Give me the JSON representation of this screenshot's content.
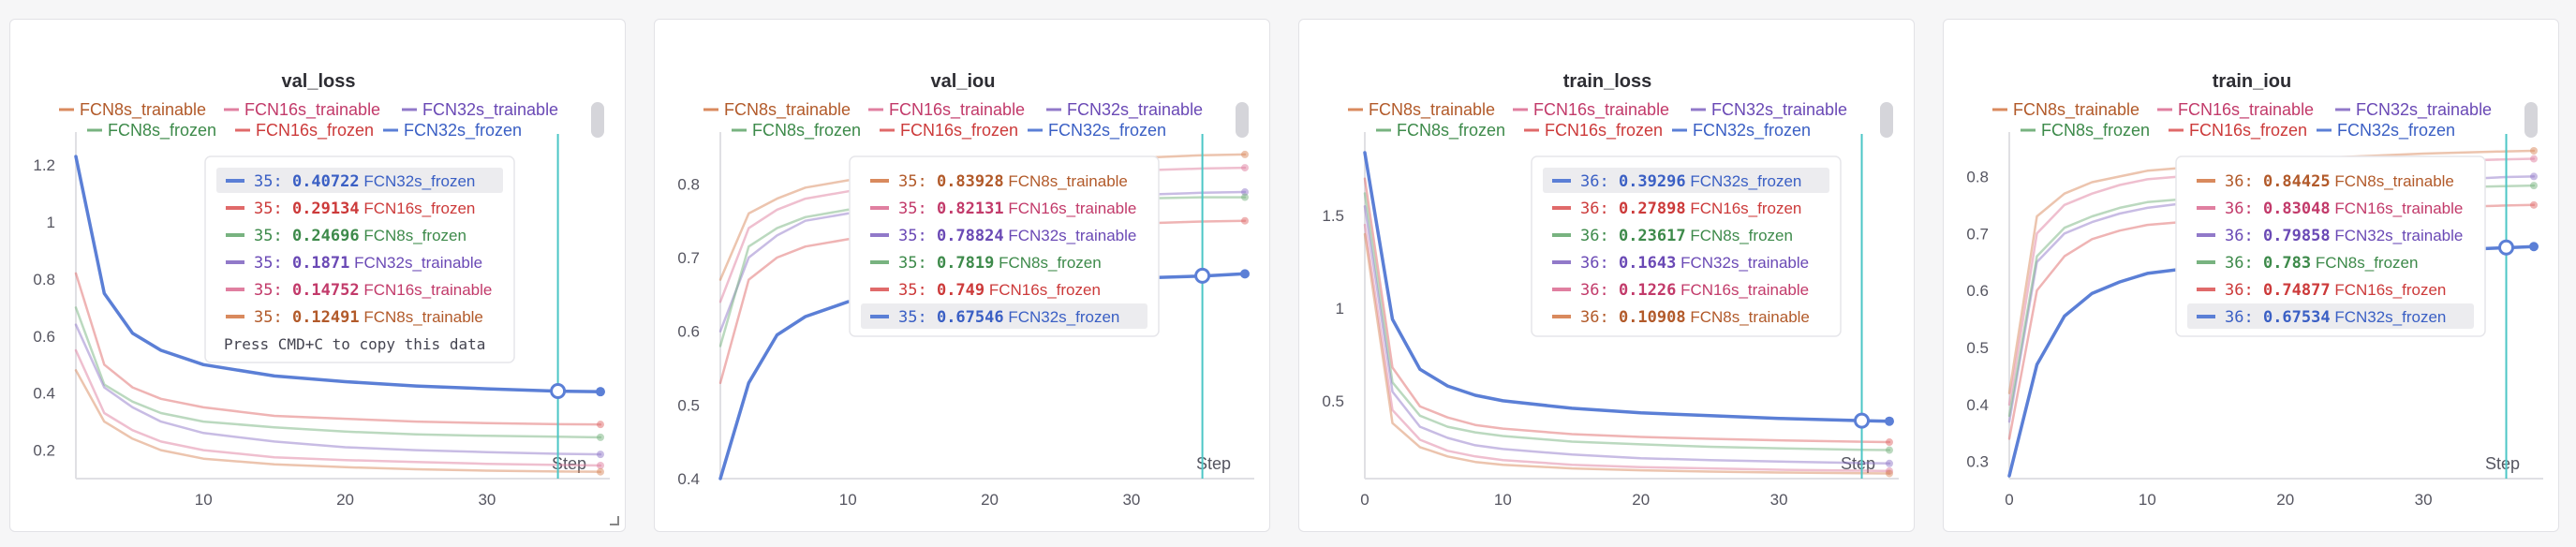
{
  "colors": {
    "FCN8s_trainable": "#d98a5e",
    "FCN16s_trainable": "#e07fa0",
    "FCN32s_trainable": "#9179c9",
    "FCN8s_frozen": "#78b380",
    "FCN16s_frozen": "#e06a6a",
    "FCN32s_frozen": "#5b7fd6",
    "cursor": "#4cc6c6",
    "FCN8s_trainable_text": "#b25a2a",
    "FCN16s_trainable_text": "#c23a6a",
    "FCN32s_trainable_text": "#6a49b5",
    "FCN8s_frozen_text": "#3d8a4a",
    "FCN16s_frozen_text": "#cc3a3a",
    "FCN32s_frozen_text": "#3a5fc4"
  },
  "legend": [
    "FCN8s_trainable",
    "FCN16s_trainable",
    "FCN32s_trainable",
    "FCN8s_frozen",
    "FCN16s_frozen",
    "FCN32s_frozen"
  ],
  "step_label": "Step",
  "copy_hint": "Press CMD+C to copy this data",
  "chart_data": [
    {
      "type": "line",
      "title": "val_loss",
      "xlim": [
        1,
        38
      ],
      "ylim": [
        0.1,
        1.25
      ],
      "xticks": [
        10,
        20,
        30
      ],
      "yticks": [
        0.2,
        0.4,
        0.6,
        0.8,
        1,
        1.2
      ],
      "grid": false,
      "cursor_step": 35,
      "tooltip": {
        "step": "35",
        "rows": [
          {
            "series": "FCN32s_frozen",
            "value": "0.40722",
            "highlight": true
          },
          {
            "series": "FCN16s_frozen",
            "value": "0.29134"
          },
          {
            "series": "FCN8s_frozen",
            "value": "0.24696"
          },
          {
            "series": "FCN32s_trainable",
            "value": "0.1871"
          },
          {
            "series": "FCN16s_trainable",
            "value": "0.14752"
          },
          {
            "series": "FCN8s_trainable",
            "value": "0.12491"
          }
        ],
        "show_hint": true
      },
      "series": [
        {
          "name": "FCN32s_frozen",
          "x": [
            1,
            3,
            5,
            7,
            10,
            15,
            20,
            25,
            30,
            35,
            38
          ],
          "y": [
            1.23,
            0.75,
            0.61,
            0.55,
            0.5,
            0.46,
            0.44,
            0.425,
            0.415,
            0.407,
            0.405
          ]
        },
        {
          "name": "FCN16s_frozen",
          "x": [
            1,
            3,
            5,
            7,
            10,
            15,
            20,
            25,
            30,
            35,
            38
          ],
          "y": [
            0.82,
            0.5,
            0.42,
            0.38,
            0.35,
            0.32,
            0.31,
            0.3,
            0.295,
            0.291,
            0.29
          ]
        },
        {
          "name": "FCN8s_frozen",
          "x": [
            1,
            3,
            5,
            7,
            10,
            15,
            20,
            25,
            30,
            35,
            38
          ],
          "y": [
            0.7,
            0.43,
            0.37,
            0.33,
            0.3,
            0.28,
            0.265,
            0.255,
            0.25,
            0.247,
            0.245
          ]
        },
        {
          "name": "FCN32s_trainable",
          "x": [
            1,
            3,
            5,
            7,
            10,
            15,
            20,
            25,
            30,
            35,
            38
          ],
          "y": [
            0.64,
            0.42,
            0.35,
            0.3,
            0.26,
            0.23,
            0.21,
            0.2,
            0.193,
            0.187,
            0.185
          ]
        },
        {
          "name": "FCN16s_trainable",
          "x": [
            1,
            3,
            5,
            7,
            10,
            15,
            20,
            25,
            30,
            35,
            38
          ],
          "y": [
            0.55,
            0.33,
            0.27,
            0.23,
            0.2,
            0.175,
            0.165,
            0.158,
            0.152,
            0.148,
            0.146
          ]
        },
        {
          "name": "FCN8s_trainable",
          "x": [
            1,
            3,
            5,
            7,
            10,
            15,
            20,
            25,
            30,
            35,
            38
          ],
          "y": [
            0.48,
            0.3,
            0.24,
            0.2,
            0.17,
            0.15,
            0.14,
            0.133,
            0.128,
            0.125,
            0.124
          ]
        }
      ]
    },
    {
      "type": "line",
      "title": "val_iou",
      "xlim": [
        1,
        38
      ],
      "ylim": [
        0.4,
        0.845
      ],
      "xticks": [
        10,
        20,
        30
      ],
      "yticks": [
        0.4,
        0.5,
        0.6,
        0.7,
        0.8
      ],
      "grid": false,
      "cursor_step": 35,
      "tooltip": {
        "step": "35",
        "rows": [
          {
            "series": "FCN8s_trainable",
            "value": "0.83928"
          },
          {
            "series": "FCN16s_trainable",
            "value": "0.82131"
          },
          {
            "series": "FCN32s_trainable",
            "value": "0.78824"
          },
          {
            "series": "FCN8s_frozen",
            "value": "0.7819"
          },
          {
            "series": "FCN16s_frozen",
            "value": "0.749"
          },
          {
            "series": "FCN32s_frozen",
            "value": "0.67546",
            "highlight": true
          }
        ],
        "show_hint": false
      },
      "series": [
        {
          "name": "FCN8s_trainable",
          "x": [
            1,
            3,
            5,
            7,
            10,
            15,
            20,
            25,
            30,
            35,
            38
          ],
          "y": [
            0.67,
            0.76,
            0.78,
            0.795,
            0.805,
            0.815,
            0.825,
            0.83,
            0.835,
            0.839,
            0.84
          ]
        },
        {
          "name": "FCN16s_trainable",
          "x": [
            1,
            3,
            5,
            7,
            10,
            15,
            20,
            25,
            30,
            35,
            38
          ],
          "y": [
            0.64,
            0.74,
            0.765,
            0.78,
            0.79,
            0.8,
            0.808,
            0.813,
            0.818,
            0.821,
            0.822
          ]
        },
        {
          "name": "FCN32s_trainable",
          "x": [
            1,
            3,
            5,
            7,
            10,
            15,
            20,
            25,
            30,
            35,
            38
          ],
          "y": [
            0.6,
            0.7,
            0.73,
            0.75,
            0.76,
            0.77,
            0.775,
            0.78,
            0.785,
            0.788,
            0.789
          ]
        },
        {
          "name": "FCN8s_frozen",
          "x": [
            1,
            3,
            5,
            7,
            10,
            15,
            20,
            25,
            30,
            35,
            38
          ],
          "y": [
            0.58,
            0.715,
            0.74,
            0.755,
            0.765,
            0.77,
            0.775,
            0.778,
            0.78,
            0.782,
            0.782
          ]
        },
        {
          "name": "FCN16s_frozen",
          "x": [
            1,
            3,
            5,
            7,
            10,
            15,
            20,
            25,
            30,
            35,
            38
          ],
          "y": [
            0.53,
            0.67,
            0.7,
            0.715,
            0.725,
            0.73,
            0.738,
            0.742,
            0.746,
            0.749,
            0.75
          ]
        },
        {
          "name": "FCN32s_frozen",
          "x": [
            1,
            3,
            5,
            7,
            10,
            15,
            20,
            25,
            30,
            35,
            38
          ],
          "y": [
            0.4,
            0.53,
            0.595,
            0.62,
            0.64,
            0.655,
            0.663,
            0.668,
            0.672,
            0.675,
            0.678
          ]
        }
      ]
    },
    {
      "type": "line",
      "title": "train_loss",
      "xlim": [
        0,
        38
      ],
      "ylim": [
        0.08,
        1.85
      ],
      "xticks": [
        0,
        10,
        20,
        30
      ],
      "yticks": [
        0.5,
        1,
        1.5
      ],
      "grid": false,
      "cursor_step": 36,
      "tooltip": {
        "step": "36",
        "rows": [
          {
            "series": "FCN32s_frozen",
            "value": "0.39296",
            "highlight": true
          },
          {
            "series": "FCN16s_frozen",
            "value": "0.27898"
          },
          {
            "series": "FCN8s_frozen",
            "value": "0.23617"
          },
          {
            "series": "FCN32s_trainable",
            "value": "0.1643"
          },
          {
            "series": "FCN16s_trainable",
            "value": "0.1226"
          },
          {
            "series": "FCN8s_trainable",
            "value": "0.10908"
          }
        ],
        "show_hint": false
      },
      "series": [
        {
          "name": "FCN32s_frozen",
          "x": [
            0,
            2,
            4,
            6,
            8,
            10,
            15,
            20,
            25,
            30,
            36,
            38
          ],
          "y": [
            1.84,
            0.94,
            0.67,
            0.58,
            0.53,
            0.5,
            0.46,
            0.435,
            0.42,
            0.405,
            0.393,
            0.39
          ]
        },
        {
          "name": "FCN16s_frozen",
          "x": [
            0,
            2,
            4,
            6,
            8,
            10,
            15,
            20,
            25,
            30,
            36,
            38
          ],
          "y": [
            1.7,
            0.68,
            0.47,
            0.41,
            0.37,
            0.35,
            0.32,
            0.305,
            0.295,
            0.287,
            0.279,
            0.277
          ]
        },
        {
          "name": "FCN8s_frozen",
          "x": [
            0,
            2,
            4,
            6,
            8,
            10,
            15,
            20,
            25,
            30,
            36,
            38
          ],
          "y": [
            1.62,
            0.6,
            0.42,
            0.36,
            0.33,
            0.31,
            0.28,
            0.265,
            0.252,
            0.244,
            0.236,
            0.234
          ]
        },
        {
          "name": "FCN32s_trainable",
          "x": [
            0,
            2,
            4,
            6,
            8,
            10,
            15,
            20,
            25,
            30,
            36,
            38
          ],
          "y": [
            1.55,
            0.55,
            0.36,
            0.3,
            0.26,
            0.24,
            0.21,
            0.19,
            0.18,
            0.172,
            0.164,
            0.162
          ]
        },
        {
          "name": "FCN16s_trainable",
          "x": [
            0,
            2,
            4,
            6,
            8,
            10,
            15,
            20,
            25,
            30,
            36,
            38
          ],
          "y": [
            1.45,
            0.45,
            0.29,
            0.23,
            0.2,
            0.18,
            0.155,
            0.142,
            0.135,
            0.128,
            0.123,
            0.121
          ]
        },
        {
          "name": "FCN8s_trainable",
          "x": [
            0,
            2,
            4,
            6,
            8,
            10,
            15,
            20,
            25,
            30,
            36,
            38
          ],
          "y": [
            1.4,
            0.38,
            0.25,
            0.2,
            0.17,
            0.155,
            0.135,
            0.125,
            0.118,
            0.113,
            0.109,
            0.108
          ]
        }
      ]
    },
    {
      "type": "line",
      "title": "train_iou",
      "xlim": [
        0,
        38
      ],
      "ylim": [
        0.27,
        0.845
      ],
      "xticks": [
        0,
        10,
        20,
        30
      ],
      "yticks": [
        0.3,
        0.4,
        0.5,
        0.6,
        0.7,
        0.8
      ],
      "grid": false,
      "cursor_step": 36,
      "tooltip": {
        "step": "36",
        "rows": [
          {
            "series": "FCN8s_trainable",
            "value": "0.84425"
          },
          {
            "series": "FCN16s_trainable",
            "value": "0.83048"
          },
          {
            "series": "FCN32s_trainable",
            "value": "0.79858"
          },
          {
            "series": "FCN8s_frozen",
            "value": "0.783"
          },
          {
            "series": "FCN16s_frozen",
            "value": "0.74877"
          },
          {
            "series": "FCN32s_frozen",
            "value": "0.67534",
            "highlight": true
          }
        ],
        "show_hint": false
      },
      "series": [
        {
          "name": "FCN8s_trainable",
          "x": [
            0,
            2,
            4,
            6,
            8,
            10,
            15,
            20,
            25,
            30,
            36,
            38
          ],
          "y": [
            0.42,
            0.73,
            0.77,
            0.79,
            0.8,
            0.81,
            0.82,
            0.83,
            0.835,
            0.84,
            0.844,
            0.845
          ]
        },
        {
          "name": "FCN16s_trainable",
          "x": [
            0,
            2,
            4,
            6,
            8,
            10,
            15,
            20,
            25,
            30,
            36,
            38
          ],
          "y": [
            0.4,
            0.7,
            0.75,
            0.77,
            0.785,
            0.795,
            0.805,
            0.815,
            0.82,
            0.826,
            0.83,
            0.831
          ]
        },
        {
          "name": "FCN32s_trainable",
          "x": [
            0,
            2,
            4,
            6,
            8,
            10,
            15,
            20,
            25,
            30,
            36,
            38
          ],
          "y": [
            0.37,
            0.65,
            0.7,
            0.72,
            0.735,
            0.745,
            0.76,
            0.775,
            0.785,
            0.792,
            0.799,
            0.8
          ]
        },
        {
          "name": "FCN8s_frozen",
          "x": [
            0,
            2,
            4,
            6,
            8,
            10,
            15,
            20,
            25,
            30,
            36,
            38
          ],
          "y": [
            0.38,
            0.66,
            0.71,
            0.73,
            0.745,
            0.755,
            0.765,
            0.772,
            0.777,
            0.78,
            0.783,
            0.784
          ]
        },
        {
          "name": "FCN16s_frozen",
          "x": [
            0,
            2,
            4,
            6,
            8,
            10,
            15,
            20,
            25,
            30,
            36,
            38
          ],
          "y": [
            0.34,
            0.6,
            0.66,
            0.69,
            0.705,
            0.715,
            0.725,
            0.735,
            0.74,
            0.745,
            0.749,
            0.75
          ]
        },
        {
          "name": "FCN32s_frozen",
          "x": [
            0,
            2,
            4,
            6,
            8,
            10,
            15,
            20,
            25,
            30,
            36,
            38
          ],
          "y": [
            0.275,
            0.47,
            0.555,
            0.595,
            0.615,
            0.63,
            0.645,
            0.655,
            0.663,
            0.669,
            0.675,
            0.677
          ]
        }
      ]
    }
  ]
}
